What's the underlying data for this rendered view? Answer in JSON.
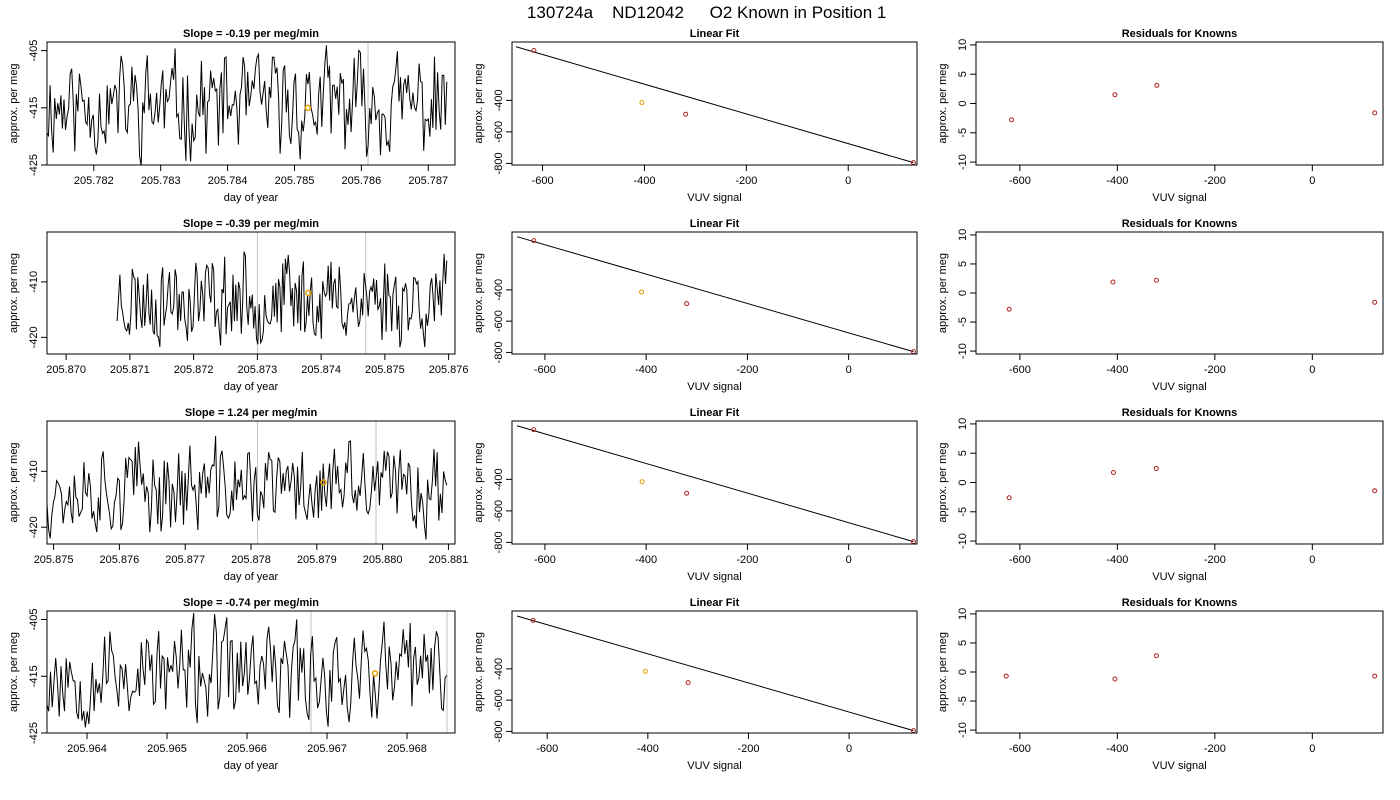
{
  "figure": {
    "title_parts": [
      "130724a",
      "ND12042",
      "O2 Known in Position  1"
    ],
    "colors": {
      "line": "#000000",
      "point": "#b22222",
      "highlight": "#e69f00",
      "vline": "#c0c0c0"
    }
  },
  "chart_data": [
    {
      "type": "line",
      "row": 1,
      "col": 1,
      "title": "Slope =  -0.19  per meg/min",
      "xlabel": "day of year",
      "ylabel": "approx. per meg",
      "xlim": [
        205.7813,
        205.7874
      ],
      "ylim": [
        -425,
        -403.5
      ],
      "xticks": [
        205.782,
        205.783,
        205.784,
        205.785,
        205.786,
        205.787
      ],
      "xtick_labels": [
        "205.782",
        "205.783",
        "205.784",
        "205.785",
        "205.786",
        "205.787"
      ],
      "yticks": [
        -425,
        -415,
        -405
      ],
      "ytick_labels": [
        "-425",
        "-415",
        "-405"
      ],
      "vlines": [
        205.7861
      ],
      "highlight": {
        "x": 205.7852,
        "y": -415.0
      },
      "series_seed": 11,
      "series_n": 260,
      "series_center": -414.5,
      "series_amp": 10
    },
    {
      "type": "scatter",
      "row": 1,
      "col": 2,
      "title": "Linear Fit",
      "xlabel": "VUV signal",
      "ylabel": "approx. per meg",
      "xlim": [
        -660,
        135
      ],
      "ylim": [
        -810,
        -30
      ],
      "xticks": [
        -600,
        -400,
        -200,
        0
      ],
      "xtick_labels": [
        "-600",
        "-400",
        "-200",
        "0"
      ],
      "yticks": [
        -800,
        -600,
        -400
      ],
      "ytick_labels": [
        "-800",
        "-600",
        "-400"
      ],
      "points": [
        {
          "x": -617,
          "y": -84
        },
        {
          "x": -405,
          "y": -414
        },
        {
          "x": -319,
          "y": -488
        },
        {
          "x": 128,
          "y": -795
        }
      ],
      "highlight_index": 1,
      "fit_line": [
        {
          "x": -652,
          "y": -60
        },
        {
          "x": 128,
          "y": -795
        }
      ]
    },
    {
      "type": "scatter",
      "row": 1,
      "col": 3,
      "title": "Residuals for Knowns",
      "xlabel": "VUV signal",
      "ylabel": "approx. per meg",
      "xlim": [
        -690,
        145
      ],
      "ylim": [
        -10.5,
        10.5
      ],
      "xticks": [
        -600,
        -400,
        -200,
        0
      ],
      "xtick_labels": [
        "-600",
        "-400",
        "-200",
        "0"
      ],
      "yticks": [
        -10,
        -5,
        0,
        5,
        10
      ],
      "ytick_labels": [
        "-10",
        "-5",
        "0",
        "5",
        "10"
      ],
      "points": [
        {
          "x": -617,
          "y": -2.8
        },
        {
          "x": -405,
          "y": 1.5
        },
        {
          "x": -319,
          "y": 3.1
        },
        {
          "x": 128,
          "y": -1.6
        }
      ]
    },
    {
      "type": "line",
      "row": 2,
      "col": 1,
      "title": "Slope =  -0.39  per meg/min",
      "xlabel": "day of year",
      "ylabel": "approx. per meg",
      "xlim": [
        205.8697,
        205.8761
      ],
      "ylim": [
        -423,
        -401
      ],
      "xticks": [
        205.87,
        205.871,
        205.872,
        205.873,
        205.874,
        205.875,
        205.876
      ],
      "xtick_labels": [
        "205.870",
        "205.871",
        "205.872",
        "205.873",
        "205.874",
        "205.875",
        "205.876"
      ],
      "yticks": [
        -420,
        -410
      ],
      "ytick_labels": [
        "-420",
        "-410"
      ],
      "vlines": [
        205.873,
        205.8747
      ],
      "highlight": {
        "x": 205.8738,
        "y": -412.0
      },
      "series_start": 205.8708,
      "series_seed": 23,
      "series_n": 240,
      "series_center": -413,
      "series_amp": 9
    },
    {
      "type": "scatter",
      "row": 2,
      "col": 2,
      "title": "Linear Fit",
      "xlabel": "VUV signal",
      "ylabel": "approx. per meg",
      "xlim": [
        -665,
        135
      ],
      "ylim": [
        -810,
        -30
      ],
      "xticks": [
        -600,
        -400,
        -200,
        0
      ],
      "xtick_labels": [
        "-600",
        "-400",
        "-200",
        "0"
      ],
      "yticks": [
        -800,
        -600,
        -400
      ],
      "ytick_labels": [
        "-800",
        "-600",
        "-400"
      ],
      "points": [
        {
          "x": -622,
          "y": -85
        },
        {
          "x": -409,
          "y": -414
        },
        {
          "x": -320,
          "y": -488
        },
        {
          "x": 128,
          "y": -795
        }
      ],
      "highlight_index": 1,
      "fit_line": [
        {
          "x": -655,
          "y": -60
        },
        {
          "x": 128,
          "y": -795
        }
      ]
    },
    {
      "type": "scatter",
      "row": 2,
      "col": 3,
      "title": "Residuals for Knowns",
      "xlabel": "VUV signal",
      "ylabel": "approx. per meg",
      "xlim": [
        -690,
        145
      ],
      "ylim": [
        -10.5,
        10.5
      ],
      "xticks": [
        -600,
        -400,
        -200,
        0
      ],
      "xtick_labels": [
        "-600",
        "-400",
        "-200",
        "0"
      ],
      "yticks": [
        -10,
        -5,
        0,
        5,
        10
      ],
      "ytick_labels": [
        "-10",
        "-5",
        "0",
        "5",
        "10"
      ],
      "points": [
        {
          "x": -622,
          "y": -2.8
        },
        {
          "x": -409,
          "y": 1.9
        },
        {
          "x": -320,
          "y": 2.2
        },
        {
          "x": 128,
          "y": -1.6
        }
      ]
    },
    {
      "type": "line",
      "row": 3,
      "col": 1,
      "title": "Slope =  1.24  per meg/min",
      "xlabel": "day of year",
      "ylabel": "approx. per meg",
      "xlim": [
        205.8749,
        205.8811
      ],
      "ylim": [
        -423,
        -401
      ],
      "xticks": [
        205.875,
        205.876,
        205.877,
        205.878,
        205.879,
        205.88,
        205.881
      ],
      "xtick_labels": [
        "205.875",
        "205.876",
        "205.877",
        "205.878",
        "205.879",
        "205.880",
        "205.881"
      ],
      "yticks": [
        -420,
        -410
      ],
      "ytick_labels": [
        "-420",
        "-410"
      ],
      "vlines": [
        205.8781,
        205.8799
      ],
      "highlight": {
        "x": 205.8791,
        "y": -412.0
      },
      "series_seed": 37,
      "series_n": 250,
      "series_center": -413,
      "series_amp": 9
    },
    {
      "type": "scatter",
      "row": 3,
      "col": 2,
      "title": "Linear Fit",
      "xlabel": "VUV signal",
      "ylabel": "approx. per meg",
      "xlim": [
        -665,
        135
      ],
      "ylim": [
        -810,
        -30
      ],
      "xticks": [
        -600,
        -400,
        -200,
        0
      ],
      "xtick_labels": [
        "-600",
        "-400",
        "-200",
        "0"
      ],
      "yticks": [
        -800,
        -600,
        -400
      ],
      "ytick_labels": [
        "-800",
        "-600",
        "-400"
      ],
      "points": [
        {
          "x": -622,
          "y": -85
        },
        {
          "x": -408,
          "y": -415
        },
        {
          "x": -320,
          "y": -488
        },
        {
          "x": 128,
          "y": -795
        }
      ],
      "highlight_index": 1,
      "fit_line": [
        {
          "x": -655,
          "y": -60
        },
        {
          "x": 128,
          "y": -795
        }
      ]
    },
    {
      "type": "scatter",
      "row": 3,
      "col": 3,
      "title": "Residuals for Knowns",
      "xlabel": "VUV signal",
      "ylabel": "approx. per meg",
      "xlim": [
        -690,
        145
      ],
      "ylim": [
        -10.5,
        10.5
      ],
      "xticks": [
        -600,
        -400,
        -200,
        0
      ],
      "xtick_labels": [
        "-600",
        "-400",
        "-200",
        "0"
      ],
      "yticks": [
        -10,
        -5,
        0,
        5,
        10
      ],
      "ytick_labels": [
        "-10",
        "-5",
        "0",
        "5",
        "10"
      ],
      "points": [
        {
          "x": -622,
          "y": -2.6
        },
        {
          "x": -408,
          "y": 1.7
        },
        {
          "x": -320,
          "y": 2.4
        },
        {
          "x": 128,
          "y": -1.4
        }
      ]
    },
    {
      "type": "line",
      "row": 4,
      "col": 1,
      "title": "Slope =  -0.74  per meg/min",
      "xlabel": "day of year",
      "ylabel": "approx. per meg",
      "xlim": [
        205.9635,
        205.9686
      ],
      "ylim": [
        -425,
        -403.5
      ],
      "xticks": [
        205.964,
        205.965,
        205.966,
        205.967,
        205.968
      ],
      "xtick_labels": [
        "205.964",
        "205.965",
        "205.966",
        "205.967",
        "205.968"
      ],
      "yticks": [
        -425,
        -415,
        -405
      ],
      "ytick_labels": [
        "-425",
        "-415",
        "-405"
      ],
      "vlines": [
        205.9668,
        205.9685
      ],
      "highlight": {
        "x": 205.9676,
        "y": -414.5
      },
      "series_seed": 53,
      "series_n": 230,
      "series_center": -414.5,
      "series_amp": 10
    },
    {
      "type": "scatter",
      "row": 4,
      "col": 2,
      "title": "Linear Fit",
      "xlabel": "VUV signal",
      "ylabel": "approx. per meg",
      "xlim": [
        -670,
        135
      ],
      "ylim": [
        -810,
        -30
      ],
      "xticks": [
        -600,
        -400,
        -200,
        0
      ],
      "xtick_labels": [
        "-600",
        "-400",
        "-200",
        "0"
      ],
      "yticks": [
        -800,
        -600,
        -400
      ],
      "ytick_labels": [
        "-800",
        "-600",
        "-400"
      ],
      "points": [
        {
          "x": -628,
          "y": -90
        },
        {
          "x": -405,
          "y": -416
        },
        {
          "x": -320,
          "y": -488
        },
        {
          "x": 128,
          "y": -795
        }
      ],
      "highlight_index": 1,
      "fit_line": [
        {
          "x": -660,
          "y": -62
        },
        {
          "x": 128,
          "y": -795
        }
      ]
    },
    {
      "type": "scatter",
      "row": 4,
      "col": 3,
      "title": "Residuals for Knowns",
      "xlabel": "VUV signal",
      "ylabel": "approx. per meg",
      "xlim": [
        -690,
        145
      ],
      "ylim": [
        -10.5,
        10.5
      ],
      "xticks": [
        -600,
        -400,
        -200,
        0
      ],
      "xtick_labels": [
        "-600",
        "-400",
        "-200",
        "0"
      ],
      "yticks": [
        -10,
        -5,
        0,
        5,
        10
      ],
      "ytick_labels": [
        "-10",
        "-5",
        "0",
        "5",
        "10"
      ],
      "points": [
        {
          "x": -628,
          "y": -0.7
        },
        {
          "x": -405,
          "y": -1.2
        },
        {
          "x": -320,
          "y": 2.8
        },
        {
          "x": 128,
          "y": -0.7
        }
      ]
    }
  ]
}
